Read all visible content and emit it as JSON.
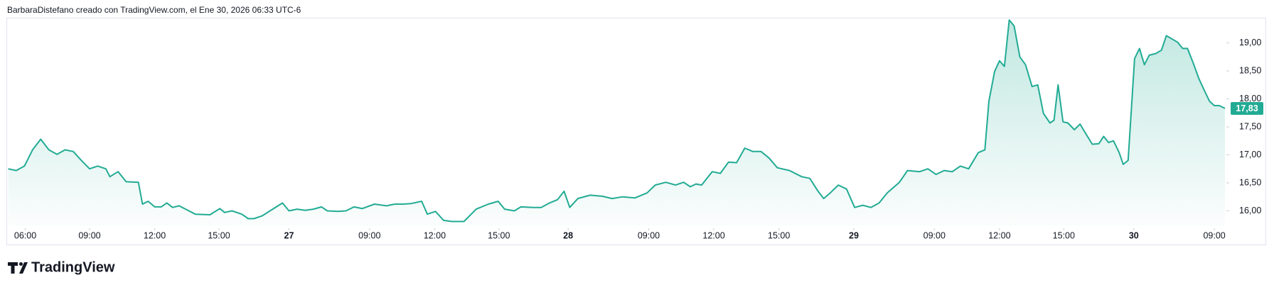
{
  "header": {
    "text": "BarbaraDistefano creado con TradingView.com, el Ene 30, 2026 06:33 UTC-6"
  },
  "brand": {
    "text": "TradingView"
  },
  "chart_data": {
    "type": "area",
    "color": "#22ab94",
    "x": [
      0,
      10,
      20,
      30,
      40,
      50,
      60,
      70,
      80,
      90,
      100,
      110,
      120,
      125,
      135,
      145,
      160,
      165,
      172,
      180,
      188,
      195,
      202,
      210,
      218,
      230,
      248,
      260,
      266,
      275,
      287,
      295,
      302,
      312,
      325,
      337,
      345,
      355,
      365,
      375,
      385,
      392,
      405,
      415,
      425,
      435,
      450,
      465,
      475,
      485,
      495,
      508,
      515,
      525,
      535,
      545,
      560,
      575,
      590,
      602,
      610,
      622,
      630,
      645,
      655,
      665,
      675,
      683,
      690,
      700,
      715,
      730,
      742,
      755,
      770,
      785,
      795,
      808,
      820,
      830,
      838,
      845,
      852,
      865,
      875,
      885,
      895,
      905,
      915,
      925,
      935,
      945,
      960,
      975,
      985,
      995,
      1002,
      1010,
      1020,
      1030,
      1040,
      1050,
      1060,
      1070,
      1080,
      1095,
      1105,
      1120,
      1130,
      1140,
      1150,
      1160,
      1170,
      1180,
      1185,
      1192,
      1200,
      1205,
      1212,
      1218,
      1224,
      1230,
      1236,
      1243,
      1250,
      1258,
      1265,
      1272,
      1280,
      1285,
      1290,
      1296,
      1302,
      1310,
      1317,
      1324,
      1332,
      1340,
      1346,
      1352,
      1358,
      1365,
      1370,
      1376,
      1384,
      1390,
      1396,
      1402,
      1410,
      1417,
      1423,
      1430,
      1437,
      1443,
      1449,
      1456,
      1463,
      1470,
      1476,
      1482,
      1488,
      1495
    ],
    "values": [
      16.75,
      16.72,
      16.8,
      17.09,
      17.28,
      17.09,
      17.01,
      17.09,
      17.06,
      16.9,
      16.75,
      16.8,
      16.75,
      16.61,
      16.7,
      16.52,
      16.51,
      16.12,
      16.17,
      16.07,
      16.07,
      16.14,
      16.06,
      16.09,
      16.03,
      15.94,
      15.93,
      16.04,
      15.97,
      16.0,
      15.94,
      15.86,
      15.86,
      15.91,
      16.03,
      16.14,
      16.0,
      16.03,
      16.01,
      16.03,
      16.07,
      16.0,
      15.99,
      16.0,
      16.07,
      16.04,
      16.12,
      16.09,
      16.12,
      16.12,
      16.13,
      16.17,
      15.94,
      15.99,
      15.83,
      15.81,
      15.81,
      16.03,
      16.12,
      16.17,
      16.03,
      16.0,
      16.07,
      16.06,
      16.06,
      16.14,
      16.2,
      16.35,
      16.06,
      16.22,
      16.28,
      16.26,
      16.22,
      16.25,
      16.23,
      16.32,
      16.46,
      16.51,
      16.46,
      16.51,
      16.43,
      16.48,
      16.46,
      16.7,
      16.67,
      16.87,
      16.86,
      17.12,
      17.06,
      17.06,
      16.94,
      16.77,
      16.72,
      16.61,
      16.58,
      16.35,
      16.22,
      16.32,
      16.46,
      16.39,
      16.06,
      16.1,
      16.06,
      16.14,
      16.32,
      16.51,
      16.72,
      16.7,
      16.75,
      16.65,
      16.72,
      16.7,
      16.8,
      16.75,
      16.87,
      17.04,
      17.09,
      17.96,
      18.49,
      18.68,
      18.58,
      19.41,
      19.3,
      18.75,
      18.61,
      18.22,
      18.25,
      17.74,
      17.57,
      17.62,
      18.25,
      17.59,
      17.57,
      17.45,
      17.55,
      17.38,
      17.19,
      17.2,
      17.33,
      17.22,
      17.25,
      17.04,
      16.83,
      16.9,
      18.72,
      18.9,
      18.61,
      18.78,
      18.81,
      18.87,
      19.13,
      19.07,
      19.01,
      18.9,
      18.9,
      18.64,
      18.36,
      18.14,
      17.96,
      17.88,
      17.88,
      17.83
    ],
    "xlim": [
      0,
      1495
    ],
    "xticks": [
      {
        "value": 21,
        "label": "06:00"
      },
      {
        "value": 100,
        "label": "09:00"
      },
      {
        "value": 180,
        "label": "12:00"
      },
      {
        "value": 259,
        "label": "15:00"
      },
      {
        "value": 345,
        "label": "27"
      },
      {
        "value": 444,
        "label": "09:00"
      },
      {
        "value": 524,
        "label": "12:00"
      },
      {
        "value": 603,
        "label": "15:00"
      },
      {
        "value": 688,
        "label": "28"
      },
      {
        "value": 787,
        "label": "09:00"
      },
      {
        "value": 867,
        "label": "12:00"
      },
      {
        "value": 947,
        "label": "15:00"
      },
      {
        "value": 1039,
        "label": "29"
      },
      {
        "value": 1138,
        "label": "09:00"
      },
      {
        "value": 1218,
        "label": "12:00"
      },
      {
        "value": 1297,
        "label": "15:00"
      },
      {
        "value": 1383,
        "label": "30"
      },
      {
        "value": 1482,
        "label": "09:00"
      }
    ],
    "ylim": [
      15.74,
      19.45
    ],
    "yticks": [
      {
        "value": 16,
        "label": "16,00"
      },
      {
        "value": 16.5,
        "label": "16,50"
      },
      {
        "value": 17,
        "label": "17,00"
      },
      {
        "value": 17.5,
        "label": "17,50"
      },
      {
        "value": 18,
        "label": "18,00"
      },
      {
        "value": 18.5,
        "label": "18,50"
      },
      {
        "value": 19,
        "label": "19,00"
      }
    ],
    "last_price": {
      "value": 17.83,
      "label": "17,83"
    }
  }
}
